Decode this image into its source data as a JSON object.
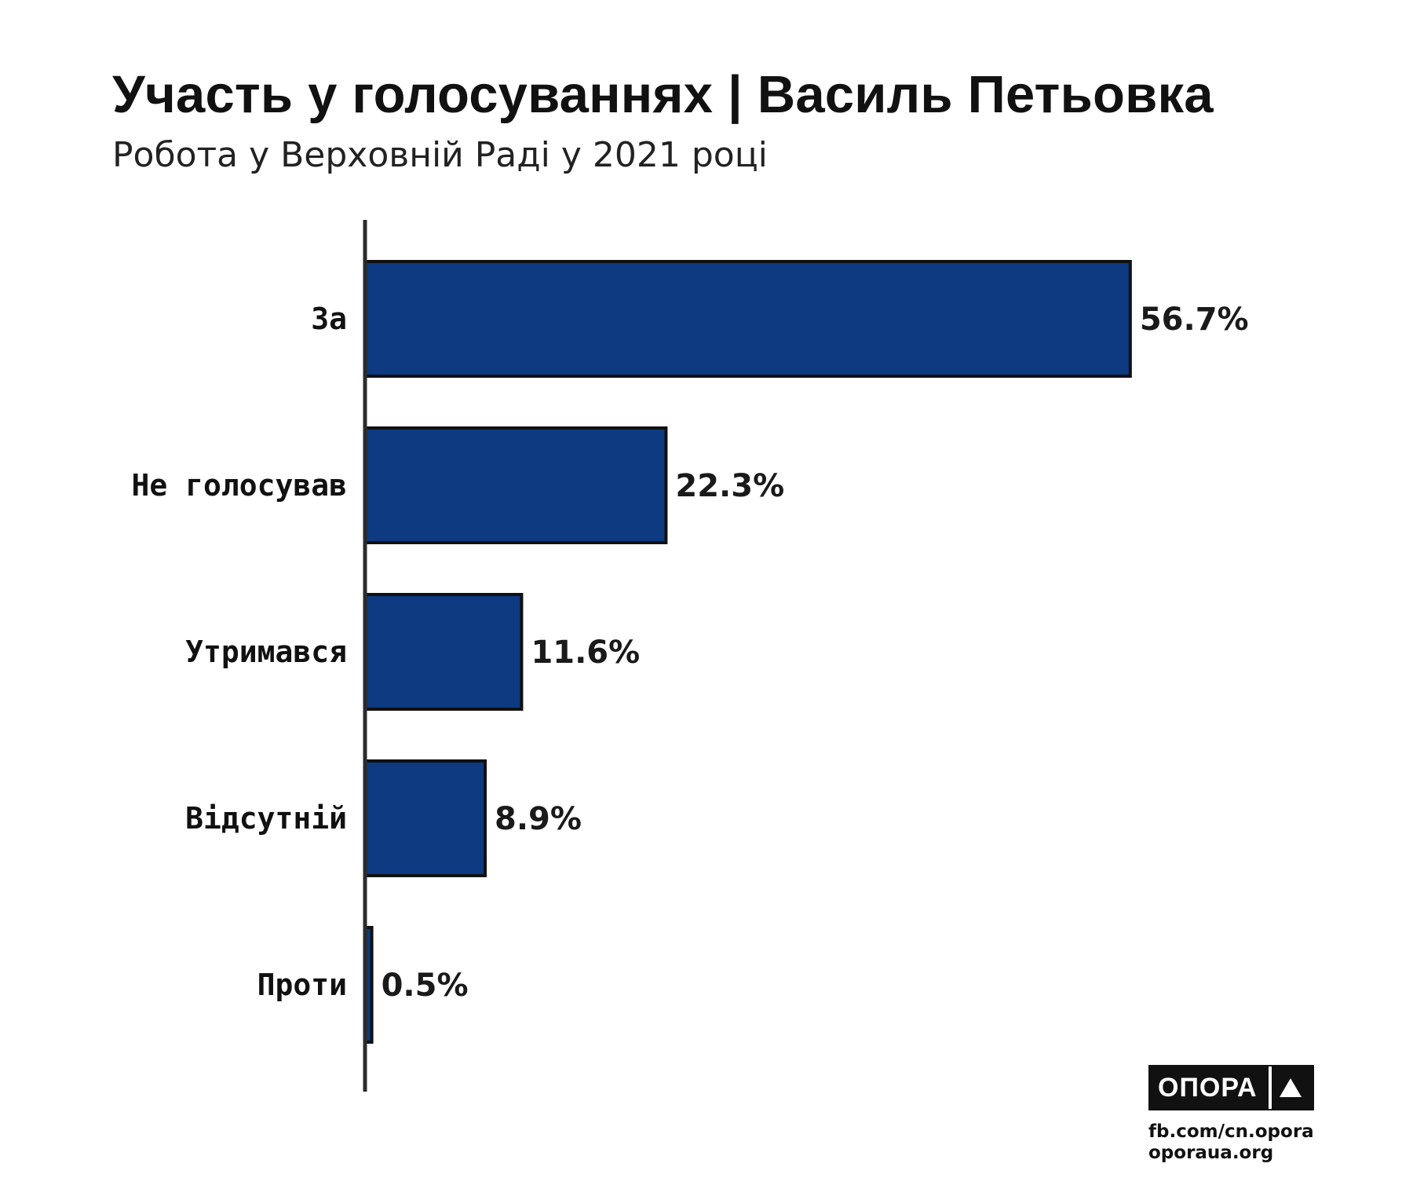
{
  "header": {
    "title": "Участь у голосуваннях | Василь Петьовка",
    "subtitle": "Робота у Верховній Раді у 2021 році"
  },
  "chart_data": {
    "type": "bar",
    "orientation": "horizontal",
    "categories": [
      "За",
      "Не голосував",
      "Утримався",
      "Відсутній",
      "Проти"
    ],
    "values": [
      56.7,
      22.3,
      11.6,
      8.9,
      0.5
    ],
    "value_labels": [
      "56.7%",
      "22.3%",
      "11.6%",
      "8.9%",
      "0.5%"
    ],
    "unit": "%",
    "xlim": [
      0,
      57
    ],
    "bar_color": "#0d3a80",
    "bar_edge_color": "#111111",
    "grid": false,
    "legend": "none"
  },
  "logo": {
    "wordmark": "ОПОРА",
    "links": [
      "fb.com/cn.opora",
      "oporaua.org"
    ]
  }
}
